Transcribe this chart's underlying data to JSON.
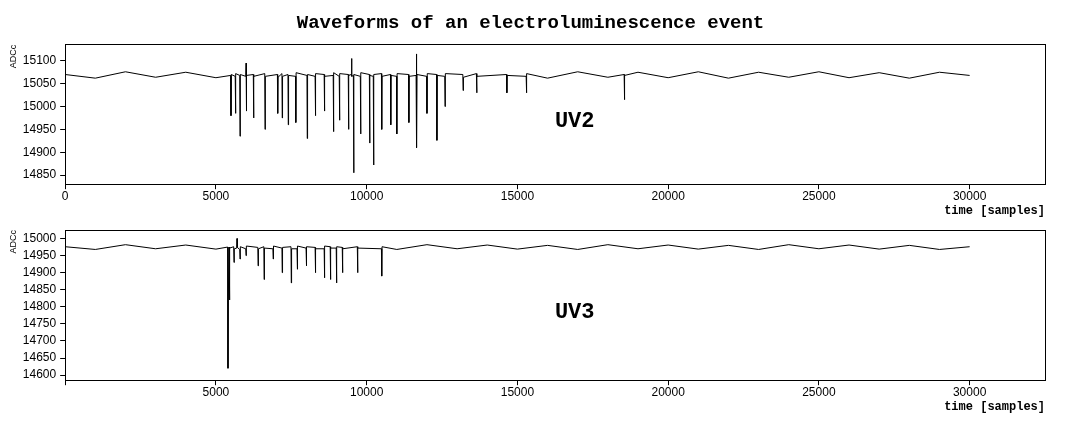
{
  "chart_data": [
    {
      "type": "line",
      "title": "Waveforms of an electroluminescence event",
      "xlabel": "time [samples]",
      "ylabel": "ADCc",
      "annotations": [
        "UV2"
      ],
      "xlim": [
        0,
        32500
      ],
      "xticks": [
        0,
        5000,
        10000,
        15000,
        20000,
        25000,
        30000
      ],
      "ylim": [
        14830,
        15135
      ],
      "yticks": [
        14850,
        14900,
        14950,
        15000,
        15050,
        15100
      ],
      "grid": false,
      "legend": false,
      "marker": "none",
      "series": [
        {
          "color": "#000000",
          "x": [
            0,
            1000,
            2000,
            3000,
            4000,
            5000,
            5490,
            5500,
            5510,
            5640,
            5650,
            5660,
            5790,
            5800,
            5810,
            5990,
            6000,
            6010,
            6020,
            6240,
            6250,
            6260,
            6620,
            6630,
            6640,
            7040,
            7050,
            7060,
            7190,
            7200,
            7210,
            7390,
            7400,
            7410,
            7640,
            7650,
            7660,
            8020,
            8030,
            8040,
            8290,
            8300,
            8310,
            8590,
            8600,
            8610,
            8890,
            8900,
            8910,
            9090,
            9100,
            9110,
            9390,
            9400,
            9410,
            9490,
            9500,
            9510,
            9560,
            9570,
            9580,
            9790,
            9800,
            9810,
            10090,
            10100,
            10110,
            10220,
            10230,
            10240,
            10490,
            10500,
            10510,
            10790,
            10800,
            10810,
            10990,
            11000,
            11010,
            11390,
            11400,
            11410,
            11640,
            11650,
            11660,
            11670,
            11990,
            12000,
            12010,
            12320,
            12330,
            12340,
            12590,
            12600,
            12610,
            13190,
            13200,
            13210,
            13640,
            13650,
            13660,
            14640,
            14650,
            14660,
            15290,
            15300,
            15310,
            16000,
            17000,
            18000,
            18540,
            18550,
            18560,
            19000,
            20000,
            21000,
            22000,
            23000,
            24000,
            25000,
            26000,
            27000,
            28000,
            29000,
            30000
          ],
          "values": [
            15070,
            15062,
            15076,
            15064,
            15075,
            15063,
            15068,
            14980,
            15070,
            15066,
            14985,
            15072,
            15068,
            14935,
            15070,
            15066,
            15095,
            14990,
            15068,
            15070,
            14975,
            15066,
            15072,
            14950,
            15066,
            15070,
            14985,
            15064,
            15072,
            14975,
            15066,
            15070,
            14960,
            15068,
            15066,
            14965,
            15074,
            15068,
            14930,
            15070,
            15066,
            14980,
            15072,
            15070,
            14990,
            15066,
            15068,
            14945,
            15074,
            15066,
            14970,
            15072,
            15070,
            14950,
            15068,
            15070,
            15105,
            15066,
            15068,
            14855,
            15070,
            15066,
            14940,
            15074,
            15070,
            14920,
            15068,
            15066,
            14872,
            15070,
            15072,
            14950,
            15066,
            15070,
            14960,
            15068,
            15066,
            14940,
            15072,
            15070,
            14965,
            15066,
            15068,
            15115,
            14910,
            15070,
            15066,
            14985,
            15072,
            15070,
            14926,
            15068,
            15066,
            15000,
            15072,
            15070,
            15035,
            15064,
            15072,
            15030,
            15066,
            15070,
            15030,
            15068,
            15066,
            15030,
            15072,
            15062,
            15076,
            15064,
            15070,
            15015,
            15068,
            15075,
            15063,
            15076,
            15062,
            15075,
            15064,
            15076,
            15063,
            15074,
            15062,
            15075,
            15068
          ]
        }
      ]
    },
    {
      "type": "line",
      "xlabel": "time [samples]",
      "ylabel": "ADCc",
      "annotations": [
        "UV3"
      ],
      "xlim": [
        0,
        32500
      ],
      "xticks": [
        {
          "value": 0,
          "label": null
        },
        5000,
        10000,
        15000,
        20000,
        25000,
        30000
      ],
      "ylim": [
        14585,
        15025
      ],
      "yticks": [
        14600,
        14650,
        14700,
        14750,
        14800,
        14850,
        14900,
        14950,
        15000
      ],
      "grid": false,
      "legend": false,
      "marker": "none",
      "series": [
        {
          "color": "#000000",
          "x": [
            0,
            1000,
            2000,
            3000,
            4000,
            5000,
            5390,
            5400,
            5410,
            5440,
            5450,
            5460,
            5590,
            5600,
            5610,
            5690,
            5700,
            5710,
            5790,
            5800,
            5810,
            5990,
            6000,
            6010,
            6390,
            6400,
            6410,
            6590,
            6600,
            6610,
            6890,
            6900,
            6910,
            7190,
            7200,
            7210,
            7490,
            7500,
            7510,
            7690,
            7700,
            7710,
            7990,
            8000,
            8010,
            8290,
            8300,
            8310,
            8590,
            8600,
            8610,
            8790,
            8800,
            8810,
            8990,
            9000,
            9010,
            9190,
            9200,
            9210,
            9690,
            9700,
            9710,
            10490,
            10500,
            10510,
            11000,
            12000,
            13000,
            14000,
            15000,
            16000,
            17000,
            18000,
            19000,
            20000,
            21000,
            22000,
            23000,
            24000,
            25000,
            26000,
            27000,
            28000,
            29000,
            30000
          ],
          "values": [
            14976,
            14968,
            14982,
            14970,
            14981,
            14969,
            14975,
            14620,
            14820,
            14975,
            14820,
            14972,
            14976,
            14930,
            14970,
            14972,
            15000,
            14974,
            14968,
            14940,
            14976,
            14970,
            14950,
            14978,
            14974,
            14920,
            14970,
            14976,
            14880,
            14972,
            14970,
            14940,
            14978,
            14972,
            14900,
            14974,
            14976,
            14870,
            14970,
            14970,
            14910,
            14978,
            14972,
            14920,
            14976,
            14974,
            14900,
            14970,
            14970,
            14885,
            14978,
            14976,
            14880,
            14972,
            14972,
            14870,
            14976,
            14974,
            14900,
            14970,
            14976,
            14900,
            14972,
            14970,
            14890,
            14976,
            14968,
            14982,
            14970,
            14981,
            14969,
            14980,
            14968,
            14982,
            14970,
            14981,
            14969,
            14980,
            14968,
            14982,
            14970,
            14981,
            14969,
            14980,
            14968,
            14976
          ]
        }
      ]
    }
  ]
}
